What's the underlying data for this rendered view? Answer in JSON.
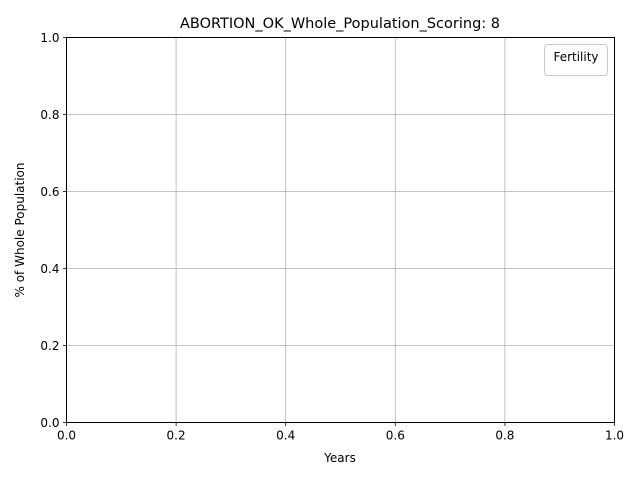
{
  "chart_data": {
    "type": "line",
    "title": "ABORTION_OK_Whole_Population_Scoring: 8",
    "xlabel": "Years",
    "ylabel": "% of Whole Population",
    "xlim": [
      0.0,
      1.0
    ],
    "ylim": [
      0.0,
      1.0
    ],
    "xticks": [
      "0.0",
      "0.2",
      "0.4",
      "0.6",
      "0.8",
      "1.0"
    ],
    "yticks": [
      "0.0",
      "0.2",
      "0.4",
      "0.6",
      "0.8",
      "1.0"
    ],
    "grid": true,
    "legend": {
      "title": "Fertility",
      "placement": "top-right",
      "entries": []
    },
    "series": []
  }
}
